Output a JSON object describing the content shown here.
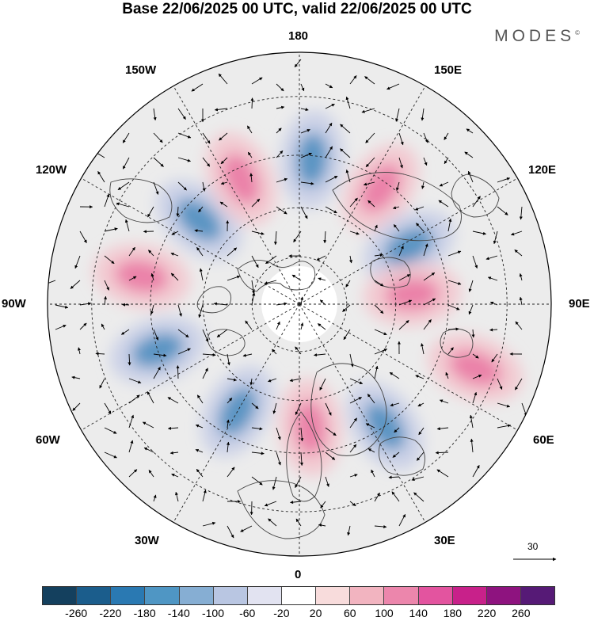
{
  "title": "Base 22/06/2025 00 UTC, valid 22/06/2025 00 UTC",
  "brand": {
    "name": "MODES",
    "mark": "©"
  },
  "map": {
    "projection": "north polar stereographic",
    "center": "North Pole",
    "longitude_labels": {
      "top": "180",
      "bottom": "0",
      "left": "90W",
      "right": "90E",
      "upper_left_1": "150W",
      "upper_left_2": "120W",
      "upper_right_1": "150E",
      "upper_right_2": "120E",
      "lower_left_1": "60W",
      "lower_left_2": "30W",
      "lower_right_1": "60E",
      "lower_right_2": "30E"
    },
    "anomaly_centers": [
      {
        "sign": "negative",
        "lon": -130,
        "lat": 50
      },
      {
        "sign": "positive",
        "lon": -100,
        "lat": 42
      },
      {
        "sign": "negative",
        "lon": -72,
        "lat": 45
      },
      {
        "sign": "positive",
        "lon": -155,
        "lat": 48
      },
      {
        "sign": "negative",
        "lon": 175,
        "lat": 46
      },
      {
        "sign": "positive",
        "lon": 145,
        "lat": 47
      },
      {
        "sign": "negative",
        "lon": 118,
        "lat": 52
      },
      {
        "sign": "positive",
        "lon": 95,
        "lat": 55
      },
      {
        "sign": "negative",
        "lon": -30,
        "lat": 52
      },
      {
        "sign": "positive",
        "lon": 5,
        "lat": 52
      },
      {
        "sign": "negative",
        "lon": 35,
        "lat": 45
      },
      {
        "sign": "positive",
        "lon": 70,
        "lat": 35
      }
    ]
  },
  "vector_reference": {
    "value": "30"
  },
  "colorbar": {
    "colors": [
      "#14405e",
      "#1b5d8c",
      "#2a79b2",
      "#4f96c4",
      "#86aed3",
      "#b9c6e2",
      "#e2e3f1",
      "#ffffff",
      "#f8dcdc",
      "#f2b4c0",
      "#ec86ac",
      "#e3549f",
      "#c8218a",
      "#8e137f",
      "#561a76"
    ],
    "ticks": [
      "-260",
      "-220",
      "-180",
      "-140",
      "-100",
      "-60",
      "-20",
      "20",
      "60",
      "100",
      "140",
      "180",
      "220",
      "260"
    ]
  }
}
